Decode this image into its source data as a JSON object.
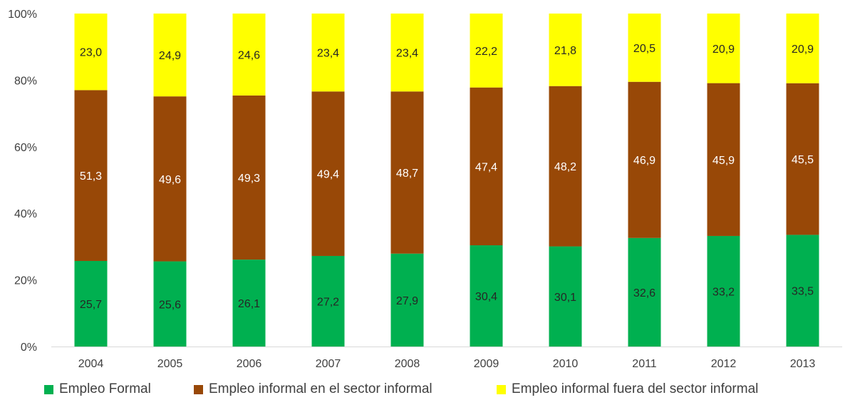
{
  "chart_data": {
    "type": "bar",
    "stacked": true,
    "percent_stacked": true,
    "categories": [
      "2004",
      "2005",
      "2006",
      "2007",
      "2008",
      "2009",
      "2010",
      "2011",
      "2012",
      "2013"
    ],
    "series": [
      {
        "name": "Empleo Formal",
        "color": "#00b050",
        "label_color": "#262626",
        "values": [
          25.7,
          25.6,
          26.1,
          27.2,
          27.9,
          30.4,
          30.1,
          32.6,
          33.2,
          33.5
        ],
        "labels": [
          "25,7",
          "25,6",
          "26,1",
          "27,2",
          "27,9",
          "30,4",
          "30,1",
          "32,6",
          "33,2",
          "33,5"
        ]
      },
      {
        "name": "Empleo informal en el sector informal",
        "color": "#984807",
        "label_color": "#ffffff",
        "values": [
          51.3,
          49.6,
          49.3,
          49.4,
          48.7,
          47.4,
          48.2,
          46.9,
          45.9,
          45.5
        ],
        "labels": [
          "51,3",
          "49,6",
          "49,3",
          "49,4",
          "48,7",
          "47,4",
          "48,2",
          "46,9",
          "45,9",
          "45,5"
        ]
      },
      {
        "name": "Empleo informal fuera del sector informal",
        "color": "#ffff00",
        "label_color": "#262626",
        "values": [
          23.0,
          24.9,
          24.6,
          23.4,
          23.4,
          22.2,
          21.8,
          20.5,
          20.9,
          20.9
        ],
        "labels": [
          "23,0",
          "24,9",
          "24,6",
          "23,4",
          "23,4",
          "22,2",
          "21,8",
          "20,5",
          "20,9",
          "20,9"
        ]
      }
    ],
    "ylim": [
      0,
      100
    ],
    "yticks": [
      "0%",
      "20%",
      "40%",
      "60%",
      "80%",
      "100%"
    ],
    "xlabel": "",
    "ylabel": "",
    "title": "",
    "grid": false,
    "legend": "bottom"
  }
}
